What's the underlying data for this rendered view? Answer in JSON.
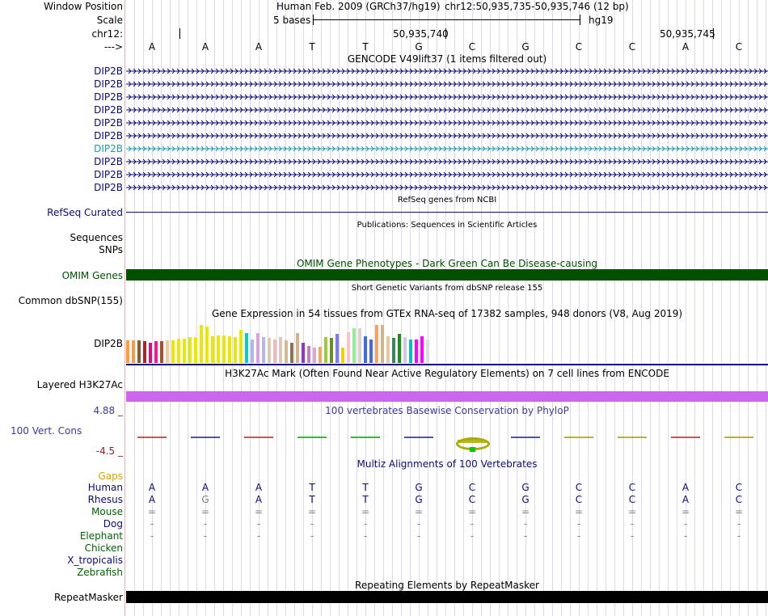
{
  "header": {
    "window_position_label": "Window Position",
    "assembly": "Human Feb. 2009 (GRCh37/hg19)",
    "position": "chr12:50,935,735-50,935,746 (12 bp)",
    "scale_label": "Scale",
    "scale_text": "5 bases",
    "scale_db": "hg19",
    "chrom_label": "chr12:",
    "pos_mark_1": "50,935,740",
    "pos_mark_2": "50,935,745",
    "strand_label": "--->"
  },
  "bases": [
    "A",
    "A",
    "A",
    "T",
    "T",
    "G",
    "C",
    "G",
    "C",
    "C",
    "A",
    "C"
  ],
  "gencode": {
    "title": "GENCODE V49lift37 (1 items filtered out)",
    "items": [
      {
        "label": "DIP2B",
        "color": "#0c0c78"
      },
      {
        "label": "DIP2B",
        "color": "#0c0c78"
      },
      {
        "label": "DIP2B",
        "color": "#0c0c78"
      },
      {
        "label": "DIP2B",
        "color": "#0c0c78"
      },
      {
        "label": "DIP2B",
        "color": "#0c0c78"
      },
      {
        "label": "DIP2B",
        "color": "#0c0c78"
      },
      {
        "label": "DIP2B",
        "color": "#1a9ab0"
      },
      {
        "label": "DIP2B",
        "color": "#0c0c78"
      },
      {
        "label": "DIP2B",
        "color": "#0c0c78"
      },
      {
        "label": "DIP2B",
        "color": "#0c0c78"
      }
    ]
  },
  "refseq": {
    "title": "RefSeq genes from NCBI",
    "label": "RefSeq Curated"
  },
  "publications": {
    "title": "Publications: Sequences in Scientific Articles",
    "label_1": "Sequences",
    "label_2": "SNPs"
  },
  "omim": {
    "title": "OMIM Gene Phenotypes - Dark Green Can Be Disease-causing",
    "label": "OMIM Genes",
    "color": "#005000"
  },
  "dbsnp": {
    "title": "Short Genetic Variants from dbSNP release 155",
    "label": "Common dbSNP(155)"
  },
  "gtex": {
    "title": "Gene Expression in 54 tissues from GTEx RNA-seq of 17382 samples, 948 donors (V8, Aug 2019)",
    "label": "DIP2B",
    "values": [
      0.52,
      0.52,
      0.53,
      0.5,
      0.47,
      0.5,
      0.5,
      0.52,
      0.52,
      0.56,
      0.56,
      0.6,
      0.6,
      0.88,
      0.85,
      0.62,
      0.65,
      0.65,
      0.62,
      0.6,
      0.78,
      0.7,
      0.55,
      0.7,
      0.6,
      0.58,
      0.55,
      0.6,
      0.52,
      0.48,
      0.7,
      0.48,
      0.4,
      0.35,
      0.38,
      0.6,
      0.58,
      0.68,
      0.35,
      0.72,
      0.82,
      0.82,
      0.62,
      0.55,
      0.88,
      0.88,
      0.62,
      0.58,
      0.68,
      0.6,
      0.55,
      0.55,
      0.62,
      0.55
    ],
    "colors": [
      "#ff9b3c",
      "#ff9b3c",
      "#8b5a2b",
      "#b22222",
      "#c71585",
      "#ff1493",
      "#a0522d",
      "#f2c8a0",
      "#e8e800",
      "#e8e800",
      "#e8e800",
      "#e8e800",
      "#e8e800",
      "#e8e800",
      "#e8e800",
      "#e8e800",
      "#e8e800",
      "#e8e800",
      "#e8e800",
      "#e8e800",
      "#e8e800",
      "#00ced1",
      "#b5b5e8",
      "#dda0dd",
      "#b5b5e8",
      "#e0c8b0",
      "#f0b8b8",
      "#dcc8b4",
      "#d8b890",
      "#8b7355",
      "#d2b48c",
      "#9932cc",
      "#c080c0",
      "#d8a8d8",
      "#f4a460",
      "#9acd32",
      "#6b8e23",
      "#7a7aff",
      "#f0d000",
      "#ffc0cb",
      "#90ee90",
      "#e0d0c0",
      "#4169e1",
      "#4169e1",
      "#f4a460",
      "#d2b48c",
      "#e6c8a0",
      "#2e8b57",
      "#228b22",
      "#d0c8e8",
      "#00bfbf",
      "#ff00ff",
      "#ff00ff",
      "#e0e0e0"
    ]
  },
  "h3k27ac": {
    "title": "H3K27Ac Mark (Often Found Near Active Regulatory Elements) on 7 cell lines from ENCODE",
    "label": "Layered H3K27Ac",
    "color": "#cc66ee"
  },
  "phylop": {
    "title": "100 vertebrates Basewise Conservation by PhyloP",
    "label": "100 Vert. Cons",
    "max_label": "4.88 _",
    "min_label": "-4.5 _",
    "colors": [
      "#cc3333",
      "#3333aa",
      "#cc3333",
      "#00bb00",
      "#00bb00",
      "#3333aa",
      "#aaaa00",
      "#3333aa",
      "#aaaa00",
      "#aaaa00",
      "#cc3333",
      "#aaaa00"
    ]
  },
  "multiz": {
    "title": "Multiz Alignments of 100 Vertebrates",
    "gaps_label": "Gaps",
    "species": [
      {
        "label": "Human",
        "color": "#0c0c78",
        "row": [
          "A",
          "A",
          "A",
          "T",
          "T",
          "G",
          "C",
          "G",
          "C",
          "C",
          "A",
          "C"
        ],
        "row_color": "#0c0c78"
      },
      {
        "label": "Rhesus",
        "color": "#0c0c78",
        "row": [
          "A",
          "G",
          "A",
          "T",
          "T",
          "G",
          "C",
          "G",
          "C",
          "C",
          "A",
          "C"
        ],
        "row_color": "#0c0c78"
      },
      {
        "label": "Mouse",
        "color": "#006400",
        "row": [
          "=",
          "=",
          "=",
          "=",
          "=",
          "=",
          "=",
          "=",
          "=",
          "=",
          "=",
          "="
        ],
        "row_color": "#808080"
      },
      {
        "label": "Dog",
        "color": "#0c0c78",
        "row": [
          "-",
          "-",
          "-",
          "-",
          "-",
          "-",
          "-",
          "-",
          "-",
          "-",
          "-",
          "-"
        ],
        "row_color": "#808080"
      },
      {
        "label": "Elephant",
        "color": "#006400",
        "row": [
          "-",
          "-",
          "-",
          "-",
          "-",
          "-",
          "-",
          "-",
          "-",
          "-",
          "-",
          "-"
        ],
        "row_color": "#808080"
      },
      {
        "label": "Chicken",
        "color": "#006400",
        "row": [],
        "row_color": "#808080"
      },
      {
        "label": "X_tropicalis",
        "color": "#0c0c78",
        "row": [],
        "row_color": "#808080"
      },
      {
        "label": "Zebrafish",
        "color": "#006400",
        "row": [],
        "row_color": "#808080"
      }
    ]
  },
  "repeatmasker": {
    "title": "Repeating Elements by RepeatMasker",
    "label": "RepeatMasker"
  }
}
